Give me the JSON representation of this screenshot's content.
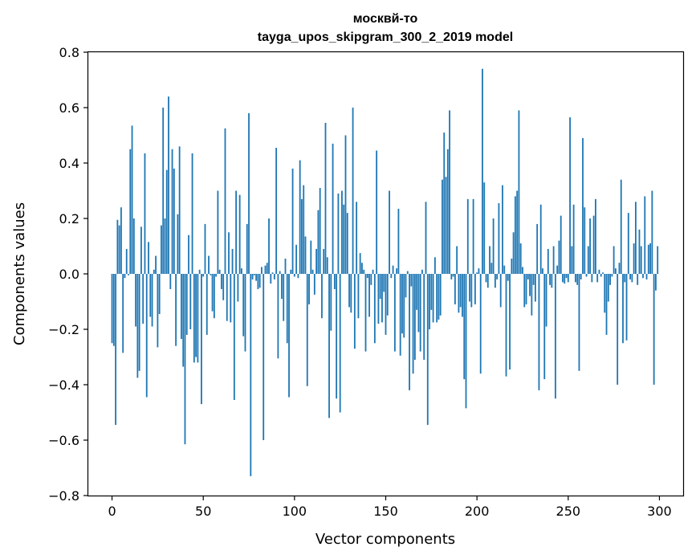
{
  "chart_data": {
    "type": "bar",
    "title_line1": "москвй-то",
    "title_line2": "tayga_upos_skipgram_300_2_2019 model",
    "xlabel": "Vector components",
    "ylabel": "Components values",
    "xlim": [
      -13,
      313
    ],
    "ylim": [
      -0.8,
      0.8
    ],
    "xticks": [
      0,
      50,
      100,
      150,
      200,
      250,
      300
    ],
    "yticks": [
      -0.8,
      -0.6,
      -0.4,
      -0.2,
      0.0,
      0.2,
      0.4,
      0.6,
      0.8
    ],
    "ytick_labels": [
      "−0.8",
      "−0.6",
      "−0.4",
      "−0.2",
      "0.0",
      "0.2",
      "0.4",
      "0.6",
      "0.8"
    ],
    "grid": false,
    "bar_color": "#1f77b4",
    "values": [
      -0.25,
      -0.26,
      -0.545,
      0.195,
      0.175,
      0.24,
      -0.285,
      -0.015,
      0.09,
      -0.005,
      0.45,
      0.535,
      0.2,
      -0.19,
      -0.375,
      -0.35,
      0.17,
      -0.18,
      0.435,
      -0.445,
      0.115,
      -0.155,
      -0.19,
      0.015,
      0.065,
      -0.265,
      -0.145,
      0.175,
      0.6,
      0.2,
      0.375,
      0.64,
      -0.055,
      0.45,
      0.38,
      -0.26,
      0.215,
      0.46,
      -0.235,
      -0.335,
      -0.615,
      -0.22,
      0.14,
      -0.2,
      0.435,
      -0.32,
      -0.3,
      -0.32,
      0.015,
      -0.47,
      -0.01,
      0.18,
      -0.22,
      0.065,
      -0.005,
      -0.135,
      -0.16,
      -0.01,
      0.3,
      0.015,
      -0.055,
      -0.095,
      0.525,
      -0.17,
      0.15,
      -0.175,
      0.09,
      -0.455,
      0.3,
      -0.1,
      0.285,
      0.02,
      -0.225,
      -0.28,
      0.18,
      0.58,
      -0.73,
      -0.02,
      -0.005,
      -0.025,
      -0.055,
      -0.05,
      0.025,
      -0.6,
      0.03,
      0.04,
      0.2,
      -0.035,
      0.005,
      -0.02,
      0.455,
      -0.305,
      0.01,
      -0.09,
      -0.17,
      0.055,
      -0.25,
      -0.445,
      0.015,
      0.38,
      -0.01,
      0.105,
      -0.015,
      0.41,
      0.27,
      0.32,
      0.135,
      -0.405,
      -0.11,
      0.12,
      0.015,
      -0.075,
      0.09,
      0.23,
      0.31,
      -0.16,
      0.09,
      0.545,
      0.06,
      -0.52,
      -0.205,
      0.47,
      -0.055,
      -0.45,
      0.29,
      -0.5,
      0.3,
      0.25,
      0.5,
      0.22,
      -0.12,
      -0.14,
      0.6,
      -0.27,
      0.26,
      -0.16,
      0.075,
      0.04,
      0.015,
      -0.28,
      -0.015,
      -0.155,
      -0.04,
      0.015,
      -0.25,
      0.445,
      -0.18,
      -0.09,
      -0.175,
      -0.065,
      -0.22,
      -0.15,
      0.3,
      -0.015,
      0.03,
      -0.28,
      0.02,
      0.235,
      -0.295,
      -0.215,
      -0.23,
      -0.085,
      0.01,
      -0.42,
      -0.045,
      -0.36,
      -0.31,
      -0.13,
      -0.21,
      -0.28,
      0.015,
      -0.31,
      0.26,
      -0.545,
      -0.2,
      -0.13,
      -0.175,
      0.06,
      -0.175,
      -0.165,
      -0.15,
      0.34,
      0.51,
      0.35,
      0.45,
      0.59,
      -0.02,
      -0.01,
      -0.11,
      0.1,
      -0.14,
      -0.12,
      -0.155,
      -0.38,
      -0.485,
      0.27,
      -0.1,
      -0.12,
      0.27,
      -0.11,
      0.005,
      0.02,
      -0.36,
      0.74,
      0.33,
      -0.03,
      -0.05,
      0.1,
      0.04,
      0.2,
      -0.05,
      -0.02,
      0.255,
      -0.12,
      0.32,
      0.03,
      -0.37,
      -0.025,
      -0.345,
      0.055,
      0.15,
      0.28,
      0.3,
      0.59,
      0.11,
      0.025,
      -0.12,
      -0.11,
      -0.02,
      -0.08,
      -0.15,
      -0.04,
      -0.1,
      0.18,
      -0.42,
      0.25,
      0.02,
      -0.38,
      -0.19,
      0.09,
      -0.04,
      -0.05,
      0.1,
      -0.45,
      0.03,
      0.12,
      0.21,
      -0.03,
      -0.035,
      -0.015,
      -0.03,
      0.565,
      0.1,
      0.25,
      -0.03,
      -0.04,
      -0.35,
      -0.02,
      0.49,
      0.24,
      -0.01,
      0.1,
      0.2,
      -0.03,
      0.21,
      0.27,
      -0.03,
      0.015,
      -0.01,
      0.005,
      -0.14,
      -0.22,
      -0.1,
      -0.04,
      -0.01,
      0.1,
      0.02,
      -0.4,
      0.04,
      0.34,
      -0.25,
      -0.03,
      -0.24,
      0.22,
      -0.02,
      -0.03,
      0.11,
      0.26,
      -0.04,
      0.16,
      0.1,
      -0.015,
      0.28,
      -0.02,
      0.105,
      0.11,
      0.3,
      -0.4,
      -0.06,
      0.1
    ]
  }
}
